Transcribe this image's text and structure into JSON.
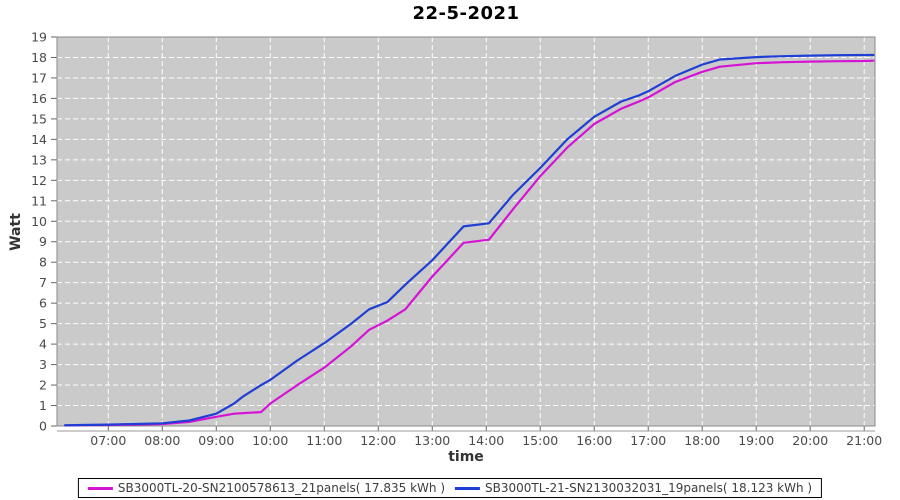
{
  "title": "22-5-2021",
  "axes": {
    "x_label": "time",
    "y_label": "Watt"
  },
  "colors": {
    "page_bg": "#ffffff",
    "plot_bg": "#cacaca",
    "grid": "#ffffff",
    "plot_border": "#8a8a8a",
    "axis_line": "#9a9a9a",
    "tick": "#666666",
    "tick_label": "#4a4a4a",
    "axis_label": "#333333",
    "title": "#000000",
    "legend_border": "#000000",
    "legend_bg": "#ffffff",
    "legend_text": "#3d3d3d",
    "series_magenta": "#d513d5",
    "series_blue": "#1f3fd4"
  },
  "chart_data": {
    "type": "line",
    "title": "22-5-2021",
    "xlabel": "time",
    "ylabel": "Watt",
    "x_unit": "hour_of_day",
    "xlim": [
      6.05,
      21.2
    ],
    "ylim": [
      0,
      19
    ],
    "grid": true,
    "legend_position": "bottom",
    "x_ticks": [
      "07:00",
      "08:00",
      "09:00",
      "10:00",
      "11:00",
      "12:00",
      "13:00",
      "14:00",
      "15:00",
      "16:00",
      "17:00",
      "18:00",
      "19:00",
      "20:00",
      "21:00"
    ],
    "x_tick_hours": [
      7,
      8,
      9,
      10,
      11,
      12,
      13,
      14,
      15,
      16,
      17,
      18,
      19,
      20,
      21
    ],
    "y_ticks": [
      0,
      1,
      2,
      3,
      4,
      5,
      6,
      7,
      8,
      9,
      10,
      11,
      12,
      13,
      14,
      15,
      16,
      17,
      18,
      19
    ],
    "x_hours": [
      6.2,
      6.5,
      7.0,
      7.5,
      8.0,
      8.5,
      9.0,
      9.33,
      9.5,
      9.83,
      10.0,
      10.5,
      11.0,
      11.5,
      11.83,
      12.17,
      12.5,
      13.0,
      13.58,
      14.05,
      14.5,
      15.0,
      15.5,
      16.0,
      16.5,
      16.83,
      17.0,
      17.5,
      18.0,
      18.33,
      19.0,
      19.5,
      20.0,
      20.5,
      21.0,
      21.17
    ],
    "series": [
      {
        "name": "SB3000TL-20-SN2100578613_21panels( 17.835 kWh )",
        "color": "#d513d5",
        "panels": 21,
        "total_kwh": 17.835,
        "values": [
          0.03,
          0.04,
          0.05,
          0.07,
          0.1,
          0.2,
          0.45,
          0.6,
          0.63,
          0.68,
          1.1,
          2.0,
          2.85,
          3.9,
          4.7,
          5.15,
          5.7,
          7.3,
          8.95,
          9.1,
          10.6,
          12.2,
          13.6,
          14.75,
          15.5,
          15.85,
          16.05,
          16.8,
          17.3,
          17.55,
          17.72,
          17.77,
          17.8,
          17.82,
          17.83,
          17.84
        ]
      },
      {
        "name": "SB3000TL-21-SN2130032031_19panels( 18.123 kWh )",
        "color": "#1f3fd4",
        "panels": 19,
        "total_kwh": 18.123,
        "values": [
          0.03,
          0.05,
          0.07,
          0.1,
          0.13,
          0.27,
          0.6,
          1.1,
          1.45,
          2.0,
          2.25,
          3.2,
          4.05,
          5.0,
          5.7,
          6.05,
          6.9,
          8.1,
          9.75,
          9.9,
          11.3,
          12.6,
          14.0,
          15.1,
          15.85,
          16.15,
          16.35,
          17.1,
          17.65,
          17.9,
          18.02,
          18.06,
          18.09,
          18.11,
          18.12,
          18.12
        ]
      }
    ]
  }
}
